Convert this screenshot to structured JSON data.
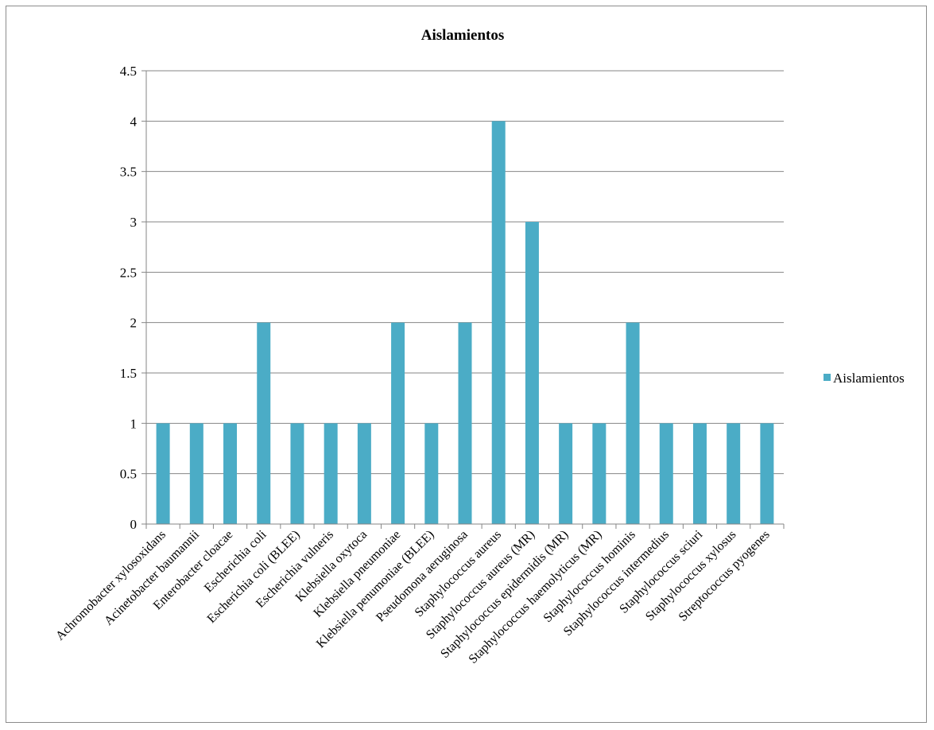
{
  "chart_data": {
    "type": "bar",
    "title": "Aislamientos",
    "xlabel": "",
    "ylabel": "",
    "ylim": [
      0,
      4.5
    ],
    "yticks": [
      "0",
      "0.5",
      "1",
      "1.5",
      "2",
      "2.5",
      "3",
      "3.5",
      "4",
      "4.5"
    ],
    "grid": true,
    "legend_position": "right",
    "categories": [
      "Achromobacter xylosoxidans",
      "Acinetobacter baumannii",
      "Enterobacter cloacae",
      "Escherichia coli",
      "Escherichia coli (BLEE)",
      "Escherichia vulneris",
      "Klebsiella oxytoca",
      "Klebsiella pneumoniae",
      "Klebsiella penumoniae (BLEE)",
      "Pseudomona aeruginosa",
      "Staphylococcus aureus",
      "Staphylococcus aureus (MR)",
      "Staphylococcus epidermidis (MR)",
      "Staphylococcus haemolyticus (MR)",
      "Staphylococcus hominis",
      "Staphylococcus intermedius",
      "Staphylococcus sciuri",
      "Staphylococcus xylosus",
      "Streptococcus pyogenes"
    ],
    "series": [
      {
        "name": "Aislamientos",
        "color": "#4bacc6",
        "values": [
          1,
          1,
          1,
          2,
          1,
          1,
          1,
          2,
          1,
          2,
          4,
          3,
          1,
          1,
          2,
          1,
          1,
          1,
          1
        ]
      }
    ]
  }
}
